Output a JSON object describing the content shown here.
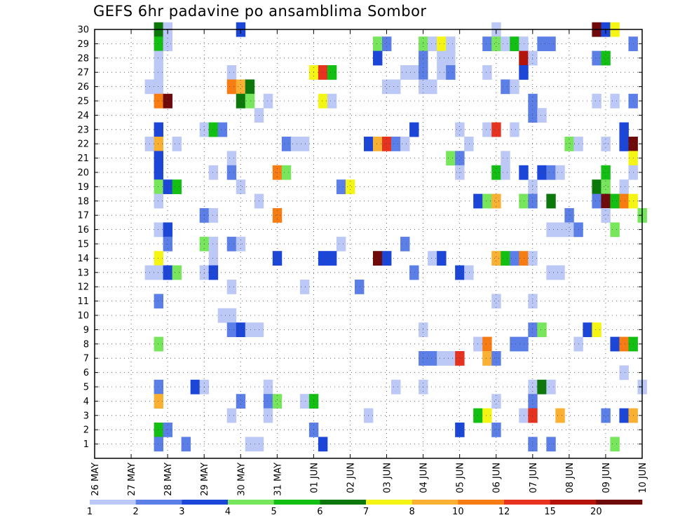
{
  "title": "GEFS 6hr padavine po ansamblima Sombor",
  "chart_data": {
    "type": "heatmap",
    "title": "GEFS 6hr padavine po ansamblima Sombor",
    "grid": true,
    "x_tick_labels": [
      "26 MAY",
      "27 MAY",
      "28 MAY",
      "29 MAY",
      "30 MAY",
      "31 MAY",
      "01 JUN",
      "02 JUN",
      "03 JUN",
      "04 JUN",
      "05 JUN",
      "06 JUN",
      "07 JUN",
      "08 JUN",
      "09 JUN",
      "10 JUN"
    ],
    "y_tick_labels": [
      "1",
      "2",
      "3",
      "4",
      "5",
      "6",
      "7",
      "8",
      "9",
      "10",
      "11",
      "12",
      "13",
      "14",
      "15",
      "16",
      "17",
      "18",
      "19",
      "20",
      "21",
      "22",
      "23",
      "24",
      "25",
      "26",
      "27",
      "28",
      "29",
      "30"
    ],
    "x_range_steps": [
      0,
      60
    ],
    "y_range": [
      0,
      30
    ],
    "colorbar": {
      "levels": [
        "1",
        "2",
        "3",
        "4",
        "5",
        "6",
        "7",
        "8",
        "10",
        "12",
        "15",
        "20"
      ],
      "colors": [
        "#bcc8f5",
        "#5b7fe6",
        "#1c46d8",
        "#77e65c",
        "#12bf12",
        "#0c780c",
        "#f5f515",
        "#fab032",
        "#f77c14",
        "#e6321e",
        "#b4140a",
        "#6e0a0a"
      ]
    },
    "cells": [
      {
        "x": 7,
        "y": 30,
        "c": 6
      },
      {
        "x": 8,
        "y": 30,
        "c": 1
      },
      {
        "x": 16,
        "y": 30,
        "c": 3
      },
      {
        "x": 44,
        "y": 30,
        "c": 1
      },
      {
        "x": 55,
        "y": 30,
        "c": 12
      },
      {
        "x": 56,
        "y": 30,
        "c": 3
      },
      {
        "x": 57,
        "y": 30,
        "c": 7
      },
      {
        "x": 7,
        "y": 29,
        "c": 5
      },
      {
        "x": 8,
        "y": 29,
        "c": 1
      },
      {
        "x": 31,
        "y": 29,
        "c": 4
      },
      {
        "x": 32,
        "y": 29,
        "c": 2
      },
      {
        "x": 36,
        "y": 29,
        "c": 4
      },
      {
        "x": 37,
        "y": 29,
        "c": 1
      },
      {
        "x": 38,
        "y": 29,
        "c": 7
      },
      {
        "x": 39,
        "y": 29,
        "c": 1
      },
      {
        "x": 43,
        "y": 29,
        "c": 2
      },
      {
        "x": 44,
        "y": 29,
        "c": 4
      },
      {
        "x": 45,
        "y": 29,
        "c": 1
      },
      {
        "x": 46,
        "y": 29,
        "c": 5
      },
      {
        "x": 47,
        "y": 29,
        "c": 1
      },
      {
        "x": 49,
        "y": 29,
        "c": 2
      },
      {
        "x": 50,
        "y": 29,
        "c": 2
      },
      {
        "x": 59,
        "y": 29,
        "c": 2
      },
      {
        "x": 7,
        "y": 28,
        "c": 1
      },
      {
        "x": 31,
        "y": 28,
        "c": 3
      },
      {
        "x": 36,
        "y": 28,
        "c": 2
      },
      {
        "x": 38,
        "y": 28,
        "c": 1
      },
      {
        "x": 39,
        "y": 28,
        "c": 1
      },
      {
        "x": 47,
        "y": 28,
        "c": 11
      },
      {
        "x": 48,
        "y": 28,
        "c": 1
      },
      {
        "x": 55,
        "y": 28,
        "c": 2
      },
      {
        "x": 56,
        "y": 28,
        "c": 5
      },
      {
        "x": 7,
        "y": 27,
        "c": 1
      },
      {
        "x": 15,
        "y": 27,
        "c": 1
      },
      {
        "x": 24,
        "y": 27,
        "c": 7
      },
      {
        "x": 25,
        "y": 27,
        "c": 10
      },
      {
        "x": 26,
        "y": 27,
        "c": 5
      },
      {
        "x": 34,
        "y": 27,
        "c": 1
      },
      {
        "x": 35,
        "y": 27,
        "c": 1
      },
      {
        "x": 36,
        "y": 27,
        "c": 2
      },
      {
        "x": 38,
        "y": 27,
        "c": 1
      },
      {
        "x": 39,
        "y": 27,
        "c": 2
      },
      {
        "x": 43,
        "y": 27,
        "c": 1
      },
      {
        "x": 47,
        "y": 27,
        "c": 3
      },
      {
        "x": 6,
        "y": 26,
        "c": 1
      },
      {
        "x": 7,
        "y": 26,
        "c": 1
      },
      {
        "x": 15,
        "y": 26,
        "c": 9
      },
      {
        "x": 16,
        "y": 26,
        "c": 8
      },
      {
        "x": 17,
        "y": 26,
        "c": 6
      },
      {
        "x": 32,
        "y": 26,
        "c": 1
      },
      {
        "x": 33,
        "y": 26,
        "c": 1
      },
      {
        "x": 36,
        "y": 26,
        "c": 1
      },
      {
        "x": 37,
        "y": 26,
        "c": 1
      },
      {
        "x": 45,
        "y": 26,
        "c": 2
      },
      {
        "x": 46,
        "y": 26,
        "c": 1
      },
      {
        "x": 7,
        "y": 25,
        "c": 9
      },
      {
        "x": 8,
        "y": 25,
        "c": 12
      },
      {
        "x": 16,
        "y": 25,
        "c": 6
      },
      {
        "x": 17,
        "y": 25,
        "c": 4
      },
      {
        "x": 19,
        "y": 25,
        "c": 1
      },
      {
        "x": 25,
        "y": 25,
        "c": 7
      },
      {
        "x": 26,
        "y": 25,
        "c": 1
      },
      {
        "x": 48,
        "y": 25,
        "c": 2
      },
      {
        "x": 55,
        "y": 25,
        "c": 1
      },
      {
        "x": 57,
        "y": 25,
        "c": 1
      },
      {
        "x": 59,
        "y": 25,
        "c": 2
      },
      {
        "x": 18,
        "y": 24,
        "c": 1
      },
      {
        "x": 48,
        "y": 24,
        "c": 2
      },
      {
        "x": 49,
        "y": 24,
        "c": 1
      },
      {
        "x": 7,
        "y": 23,
        "c": 3
      },
      {
        "x": 12,
        "y": 23,
        "c": 1
      },
      {
        "x": 13,
        "y": 23,
        "c": 5
      },
      {
        "x": 14,
        "y": 23,
        "c": 2
      },
      {
        "x": 35,
        "y": 23,
        "c": 3
      },
      {
        "x": 40,
        "y": 23,
        "c": 1
      },
      {
        "x": 43,
        "y": 23,
        "c": 1
      },
      {
        "x": 44,
        "y": 23,
        "c": 10
      },
      {
        "x": 46,
        "y": 23,
        "c": 1
      },
      {
        "x": 58,
        "y": 23,
        "c": 3
      },
      {
        "x": 6,
        "y": 22,
        "c": 1
      },
      {
        "x": 7,
        "y": 22,
        "c": 8
      },
      {
        "x": 9,
        "y": 22,
        "c": 1
      },
      {
        "x": 21,
        "y": 22,
        "c": 2
      },
      {
        "x": 22,
        "y": 22,
        "c": 1
      },
      {
        "x": 23,
        "y": 22,
        "c": 1
      },
      {
        "x": 30,
        "y": 22,
        "c": 3
      },
      {
        "x": 31,
        "y": 22,
        "c": 8
      },
      {
        "x": 32,
        "y": 22,
        "c": 10
      },
      {
        "x": 33,
        "y": 22,
        "c": 2
      },
      {
        "x": 34,
        "y": 22,
        "c": 1
      },
      {
        "x": 41,
        "y": 22,
        "c": 1
      },
      {
        "x": 52,
        "y": 22,
        "c": 4
      },
      {
        "x": 53,
        "y": 22,
        "c": 1
      },
      {
        "x": 56,
        "y": 22,
        "c": 1
      },
      {
        "x": 58,
        "y": 22,
        "c": 3
      },
      {
        "x": 59,
        "y": 22,
        "c": 12
      },
      {
        "x": 7,
        "y": 21,
        "c": 3
      },
      {
        "x": 15,
        "y": 21,
        "c": 1
      },
      {
        "x": 39,
        "y": 21,
        "c": 4
      },
      {
        "x": 40,
        "y": 21,
        "c": 2
      },
      {
        "x": 45,
        "y": 21,
        "c": 1
      },
      {
        "x": 59,
        "y": 21,
        "c": 7
      },
      {
        "x": 7,
        "y": 20,
        "c": 3
      },
      {
        "x": 13,
        "y": 20,
        "c": 1
      },
      {
        "x": 15,
        "y": 20,
        "c": 2
      },
      {
        "x": 20,
        "y": 20,
        "c": 9
      },
      {
        "x": 21,
        "y": 20,
        "c": 4
      },
      {
        "x": 40,
        "y": 20,
        "c": 1
      },
      {
        "x": 44,
        "y": 20,
        "c": 5
      },
      {
        "x": 45,
        "y": 20,
        "c": 1
      },
      {
        "x": 47,
        "y": 20,
        "c": 3
      },
      {
        "x": 49,
        "y": 20,
        "c": 3
      },
      {
        "x": 50,
        "y": 20,
        "c": 2
      },
      {
        "x": 51,
        "y": 20,
        "c": 1
      },
      {
        "x": 56,
        "y": 20,
        "c": 5
      },
      {
        "x": 59,
        "y": 20,
        "c": 1
      },
      {
        "x": 7,
        "y": 19,
        "c": 4
      },
      {
        "x": 8,
        "y": 19,
        "c": 3
      },
      {
        "x": 9,
        "y": 19,
        "c": 5
      },
      {
        "x": 16,
        "y": 19,
        "c": 1
      },
      {
        "x": 27,
        "y": 19,
        "c": 2
      },
      {
        "x": 28,
        "y": 19,
        "c": 7
      },
      {
        "x": 48,
        "y": 19,
        "c": 1
      },
      {
        "x": 55,
        "y": 19,
        "c": 6
      },
      {
        "x": 56,
        "y": 19,
        "c": 4
      },
      {
        "x": 58,
        "y": 19,
        "c": 1
      },
      {
        "x": 7,
        "y": 18,
        "c": 1
      },
      {
        "x": 18,
        "y": 18,
        "c": 1
      },
      {
        "x": 42,
        "y": 18,
        "c": 3
      },
      {
        "x": 43,
        "y": 18,
        "c": 4
      },
      {
        "x": 44,
        "y": 18,
        "c": 8
      },
      {
        "x": 47,
        "y": 18,
        "c": 4
      },
      {
        "x": 48,
        "y": 18,
        "c": 2
      },
      {
        "x": 50,
        "y": 18,
        "c": 6
      },
      {
        "x": 55,
        "y": 18,
        "c": 2
      },
      {
        "x": 56,
        "y": 18,
        "c": 12
      },
      {
        "x": 57,
        "y": 18,
        "c": 5
      },
      {
        "x": 58,
        "y": 18,
        "c": 9
      },
      {
        "x": 59,
        "y": 18,
        "c": 7
      },
      {
        "x": 12,
        "y": 17,
        "c": 2
      },
      {
        "x": 13,
        "y": 17,
        "c": 1
      },
      {
        "x": 20,
        "y": 17,
        "c": 9
      },
      {
        "x": 52,
        "y": 17,
        "c": 2
      },
      {
        "x": 56,
        "y": 17,
        "c": 1
      },
      {
        "x": 60,
        "y": 17,
        "c": 4
      },
      {
        "x": 7,
        "y": 16,
        "c": 1
      },
      {
        "x": 8,
        "y": 16,
        "c": 3
      },
      {
        "x": 50,
        "y": 16,
        "c": 1
      },
      {
        "x": 51,
        "y": 16,
        "c": 1
      },
      {
        "x": 52,
        "y": 16,
        "c": 1
      },
      {
        "x": 53,
        "y": 16,
        "c": 2
      },
      {
        "x": 57,
        "y": 16,
        "c": 4
      },
      {
        "x": 8,
        "y": 15,
        "c": 2
      },
      {
        "x": 12,
        "y": 15,
        "c": 4
      },
      {
        "x": 13,
        "y": 15,
        "c": 1
      },
      {
        "x": 15,
        "y": 15,
        "c": 2
      },
      {
        "x": 16,
        "y": 15,
        "c": 1
      },
      {
        "x": 27,
        "y": 15,
        "c": 1
      },
      {
        "x": 34,
        "y": 15,
        "c": 2
      },
      {
        "x": 7,
        "y": 14,
        "c": 7
      },
      {
        "x": 13,
        "y": 14,
        "c": 1
      },
      {
        "x": 20,
        "y": 14,
        "c": 3
      },
      {
        "x": 25,
        "y": 14,
        "c": 3
      },
      {
        "x": 26,
        "y": 14,
        "c": 3
      },
      {
        "x": 31,
        "y": 14,
        "c": 12
      },
      {
        "x": 32,
        "y": 14,
        "c": 3
      },
      {
        "x": 37,
        "y": 14,
        "c": 1
      },
      {
        "x": 38,
        "y": 14,
        "c": 3
      },
      {
        "x": 44,
        "y": 14,
        "c": 8
      },
      {
        "x": 45,
        "y": 14,
        "c": 5
      },
      {
        "x": 46,
        "y": 14,
        "c": 2
      },
      {
        "x": 47,
        "y": 14,
        "c": 9
      },
      {
        "x": 48,
        "y": 14,
        "c": 1
      },
      {
        "x": 6,
        "y": 13,
        "c": 1
      },
      {
        "x": 7,
        "y": 13,
        "c": 1
      },
      {
        "x": 8,
        "y": 13,
        "c": 3
      },
      {
        "x": 9,
        "y": 13,
        "c": 4
      },
      {
        "x": 12,
        "y": 13,
        "c": 1
      },
      {
        "x": 13,
        "y": 13,
        "c": 3
      },
      {
        "x": 35,
        "y": 13,
        "c": 2
      },
      {
        "x": 40,
        "y": 13,
        "c": 3
      },
      {
        "x": 41,
        "y": 13,
        "c": 1
      },
      {
        "x": 50,
        "y": 13,
        "c": 1
      },
      {
        "x": 51,
        "y": 13,
        "c": 1
      },
      {
        "x": 15,
        "y": 12,
        "c": 1
      },
      {
        "x": 23,
        "y": 12,
        "c": 1
      },
      {
        "x": 29,
        "y": 12,
        "c": 2
      },
      {
        "x": 7,
        "y": 11,
        "c": 2
      },
      {
        "x": 44,
        "y": 11,
        "c": 1
      },
      {
        "x": 48,
        "y": 11,
        "c": 1
      },
      {
        "x": 14,
        "y": 10,
        "c": 1
      },
      {
        "x": 15,
        "y": 10,
        "c": 1
      },
      {
        "x": 15,
        "y": 9,
        "c": 2
      },
      {
        "x": 16,
        "y": 9,
        "c": 3
      },
      {
        "x": 17,
        "y": 9,
        "c": 1
      },
      {
        "x": 18,
        "y": 9,
        "c": 1
      },
      {
        "x": 36,
        "y": 9,
        "c": 1
      },
      {
        "x": 48,
        "y": 9,
        "c": 2
      },
      {
        "x": 49,
        "y": 9,
        "c": 4
      },
      {
        "x": 54,
        "y": 9,
        "c": 3
      },
      {
        "x": 55,
        "y": 9,
        "c": 7
      },
      {
        "x": 7,
        "y": 8,
        "c": 4
      },
      {
        "x": 42,
        "y": 8,
        "c": 1
      },
      {
        "x": 43,
        "y": 8,
        "c": 9
      },
      {
        "x": 46,
        "y": 8,
        "c": 2
      },
      {
        "x": 47,
        "y": 8,
        "c": 2
      },
      {
        "x": 53,
        "y": 8,
        "c": 1
      },
      {
        "x": 57,
        "y": 8,
        "c": 3
      },
      {
        "x": 58,
        "y": 8,
        "c": 9
      },
      {
        "x": 59,
        "y": 8,
        "c": 5
      },
      {
        "x": 36,
        "y": 7,
        "c": 2
      },
      {
        "x": 37,
        "y": 7,
        "c": 2
      },
      {
        "x": 38,
        "y": 7,
        "c": 1
      },
      {
        "x": 39,
        "y": 7,
        "c": 1
      },
      {
        "x": 40,
        "y": 7,
        "c": 10
      },
      {
        "x": 43,
        "y": 7,
        "c": 8
      },
      {
        "x": 44,
        "y": 7,
        "c": 2
      },
      {
        "x": 58,
        "y": 6,
        "c": 1
      },
      {
        "x": 7,
        "y": 5,
        "c": 2
      },
      {
        "x": 11,
        "y": 5,
        "c": 3
      },
      {
        "x": 12,
        "y": 5,
        "c": 1
      },
      {
        "x": 19,
        "y": 5,
        "c": 1
      },
      {
        "x": 33,
        "y": 5,
        "c": 1
      },
      {
        "x": 36,
        "y": 5,
        "c": 1
      },
      {
        "x": 48,
        "y": 5,
        "c": 1
      },
      {
        "x": 49,
        "y": 5,
        "c": 6
      },
      {
        "x": 50,
        "y": 5,
        "c": 1
      },
      {
        "x": 60,
        "y": 5,
        "c": 1
      },
      {
        "x": 7,
        "y": 4,
        "c": 8
      },
      {
        "x": 16,
        "y": 4,
        "c": 2
      },
      {
        "x": 19,
        "y": 4,
        "c": 2
      },
      {
        "x": 20,
        "y": 4,
        "c": 4
      },
      {
        "x": 23,
        "y": 4,
        "c": 1
      },
      {
        "x": 24,
        "y": 4,
        "c": 5
      },
      {
        "x": 44,
        "y": 4,
        "c": 1
      },
      {
        "x": 48,
        "y": 4,
        "c": 2
      },
      {
        "x": 15,
        "y": 3,
        "c": 1
      },
      {
        "x": 19,
        "y": 3,
        "c": 1
      },
      {
        "x": 30,
        "y": 3,
        "c": 1
      },
      {
        "x": 42,
        "y": 3,
        "c": 5
      },
      {
        "x": 43,
        "y": 3,
        "c": 7
      },
      {
        "x": 47,
        "y": 3,
        "c": 1
      },
      {
        "x": 48,
        "y": 3,
        "c": 10
      },
      {
        "x": 51,
        "y": 3,
        "c": 8
      },
      {
        "x": 56,
        "y": 3,
        "c": 2
      },
      {
        "x": 58,
        "y": 3,
        "c": 3
      },
      {
        "x": 59,
        "y": 3,
        "c": 8
      },
      {
        "x": 7,
        "y": 2,
        "c": 5
      },
      {
        "x": 8,
        "y": 2,
        "c": 2
      },
      {
        "x": 24,
        "y": 2,
        "c": 2
      },
      {
        "x": 40,
        "y": 2,
        "c": 3
      },
      {
        "x": 44,
        "y": 2,
        "c": 2
      },
      {
        "x": 7,
        "y": 1,
        "c": 2
      },
      {
        "x": 10,
        "y": 1,
        "c": 2
      },
      {
        "x": 17,
        "y": 1,
        "c": 1
      },
      {
        "x": 18,
        "y": 1,
        "c": 1
      },
      {
        "x": 25,
        "y": 1,
        "c": 3
      },
      {
        "x": 48,
        "y": 1,
        "c": 2
      },
      {
        "x": 50,
        "y": 1,
        "c": 2
      },
      {
        "x": 57,
        "y": 1,
        "c": 4
      }
    ]
  }
}
